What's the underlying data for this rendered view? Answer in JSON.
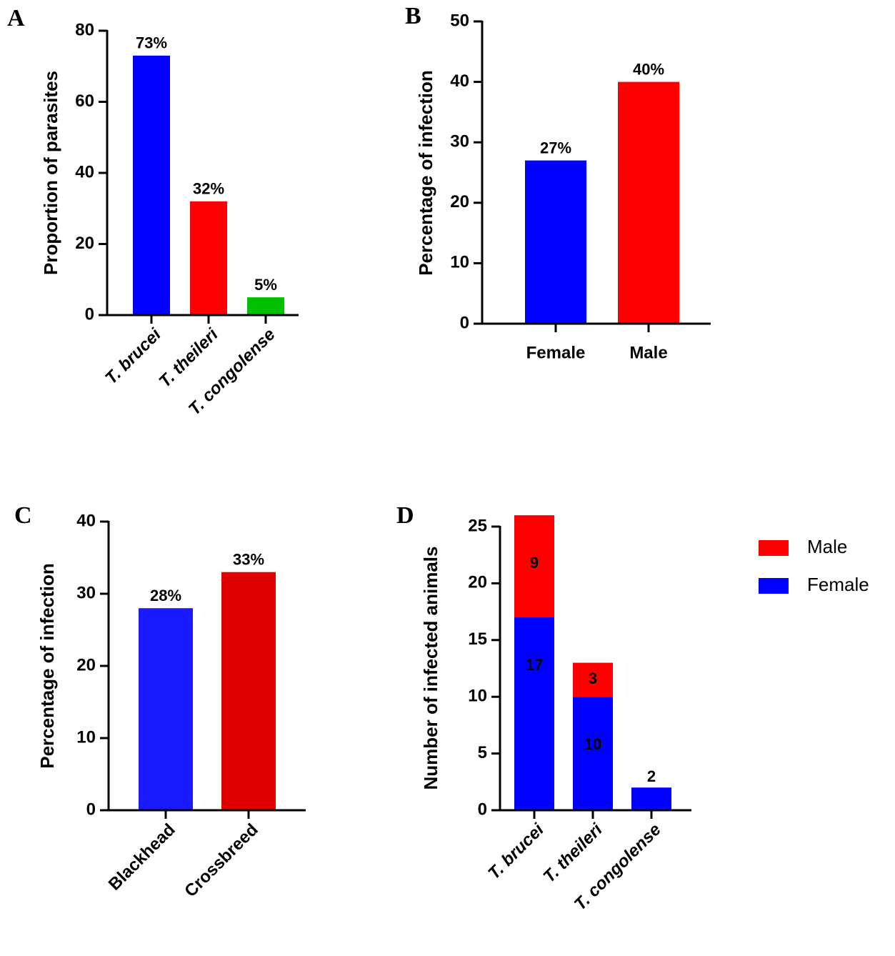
{
  "chart_data": [
    {
      "type": "bar",
      "panel_label": "A",
      "ylabel": "Proportion of parasites",
      "categories": [
        "T. brucei",
        "T. theileri",
        "T. congolense"
      ],
      "values": [
        73,
        32,
        5
      ],
      "value_labels": [
        "73%",
        "32%",
        "5%"
      ],
      "colors": [
        "#0000ff",
        "#ff0000",
        "#00c000"
      ],
      "ylim": [
        0,
        80
      ],
      "yticks": [
        0,
        20,
        40,
        60,
        80
      ]
    },
    {
      "type": "bar",
      "panel_label": "B",
      "ylabel": "Percentage of infection",
      "categories": [
        "Female",
        "Male"
      ],
      "values": [
        27,
        40
      ],
      "value_labels": [
        "27%",
        "40%"
      ],
      "colors": [
        "#0000ff",
        "#ff0000"
      ],
      "ylim": [
        0,
        50
      ],
      "yticks": [
        0,
        10,
        20,
        30,
        40,
        50
      ]
    },
    {
      "type": "bar",
      "panel_label": "C",
      "ylabel": "Percentage of infection",
      "categories": [
        "Blackhead",
        "Crossbreed"
      ],
      "values": [
        28,
        33
      ],
      "value_labels": [
        "28%",
        "33%"
      ],
      "colors": [
        "#1a1aff",
        "#e00000"
      ],
      "ylim": [
        0,
        40
      ],
      "yticks": [
        0,
        10,
        20,
        30,
        40
      ]
    },
    {
      "type": "stacked_bar",
      "panel_label": "D",
      "ylabel": "Number of infected animals",
      "categories": [
        "T. brucei",
        "T. theileri",
        "T. congolense"
      ],
      "series": [
        {
          "name": "Female",
          "color": "#0000ff",
          "values": [
            17,
            10,
            2
          ]
        },
        {
          "name": "Male",
          "color": "#ff0000",
          "values": [
            9,
            3,
            0
          ]
        }
      ],
      "legend": "right",
      "ylim": [
        0,
        25
      ],
      "yticks": [
        0,
        5,
        10,
        15,
        20,
        25
      ]
    }
  ]
}
